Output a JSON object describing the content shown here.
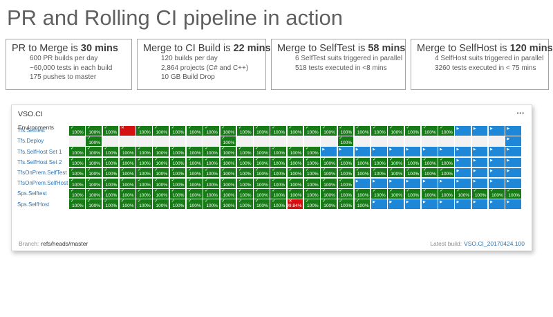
{
  "page": {
    "title": "PR and Rolling CI pipeline in action"
  },
  "stat_boxes": [
    {
      "title_prefix": "PR to Merge is ",
      "title_bold": "30 mins",
      "lines": [
        "600 PR builds per day",
        "~60,000 tests in each build",
        "175 pushes to master"
      ]
    },
    {
      "title_prefix": "Merge to CI Build is ",
      "title_bold": "22 mins",
      "lines": [
        "120 builds per day",
        "2,864 projects (C# and C++)",
        "10 GB Build Drop"
      ]
    },
    {
      "title_prefix": "Merge to SelfTest is ",
      "title_bold": "58 mins",
      "lines": [
        "6 SelfTest suits triggered in parallel",
        "518 tests executed in <8 mins"
      ]
    },
    {
      "title_prefix": "Merge to SelfHost is ",
      "title_bold": "120 mins",
      "lines": [
        "4 SelfHost suits triggered in parallel",
        "3260 tests executed in < 75 mins"
      ]
    }
  ],
  "panel": {
    "title": "VSO.CI",
    "menu_icon": "•••",
    "environments_label": "Environments",
    "pass_label": "100%",
    "icons": {
      "pass": "✓",
      "fail": "✕",
      "running": "▶"
    },
    "colors": {
      "pass": "#177b17",
      "fail": "#d51010",
      "running": "#1e87d8",
      "empty": "#f2f2f2",
      "label_link": "#2e75b5"
    },
    "rows": [
      {
        "label": "Tfs.Selftest",
        "cells": [
          "pass",
          "pass",
          "pass",
          "fail",
          "pass",
          "pass",
          "pass",
          "pass",
          "pass",
          "pass",
          "pass",
          "pass",
          "pass",
          "pass",
          "pass",
          "pass",
          "pass",
          "pass",
          "pass",
          "pass",
          "pass",
          "pass",
          "pass",
          "running",
          "running",
          "running",
          "running"
        ]
      },
      {
        "label": "Tfs.Deploy",
        "cells": [
          "empty",
          "pass",
          "empty",
          "empty",
          "empty",
          "empty",
          "empty",
          "empty",
          "empty",
          "pass",
          "empty",
          "empty",
          "empty",
          "empty",
          "empty",
          "empty",
          "pass",
          "empty",
          "empty",
          "empty",
          "empty",
          "empty",
          "empty",
          "empty",
          "empty",
          "empty",
          "running"
        ]
      },
      {
        "label": "Tfs.SelfHost Set 1",
        "cells": [
          "pass",
          "pass",
          "pass",
          "pass",
          "pass",
          "pass",
          "pass",
          "pass",
          "pass",
          "pass",
          "pass",
          "pass",
          "pass",
          "pass",
          "pass",
          "running",
          "running",
          "running",
          "running",
          "running",
          "running",
          "running",
          "running",
          "running",
          "running",
          "running",
          "running"
        ]
      },
      {
        "label": "Tfs.SelfHost Set 2",
        "cells": [
          "pass",
          "pass",
          "pass",
          "pass",
          "pass",
          "pass",
          "pass",
          "pass",
          "pass",
          "pass",
          "pass",
          "pass",
          "pass",
          "pass",
          "pass",
          "pass",
          "pass",
          "pass",
          "pass",
          "pass",
          "pass",
          "pass",
          "pass",
          "running",
          "running",
          "running",
          "running"
        ]
      },
      {
        "label": "TfsOnPrem.SelfTest",
        "cells": [
          "pass",
          "pass",
          "pass",
          "pass",
          "pass",
          "pass",
          "pass",
          "pass",
          "pass",
          "pass",
          "pass",
          "pass",
          "pass",
          "pass",
          "pass",
          "pass",
          "pass",
          "pass",
          "pass",
          "pass",
          "pass",
          "pass",
          "pass",
          "running",
          "running",
          "running",
          "running"
        ]
      },
      {
        "label": "TfsOnPrem.SelfHost",
        "cells": [
          "pass",
          "pass",
          "pass",
          "pass",
          "pass",
          "pass",
          "pass",
          "pass",
          "pass",
          "pass",
          "pass",
          "pass",
          "pass",
          "pass",
          "pass",
          "pass",
          "pass",
          "running",
          "running",
          "running",
          "running",
          "running",
          "running",
          "running",
          "running",
          "running",
          "running"
        ]
      },
      {
        "label": "Sps.Selftest",
        "cells": [
          "pass",
          "pass",
          "pass",
          "pass",
          "pass",
          "pass",
          "pass",
          "pass",
          "pass",
          "pass",
          "pass",
          "pass",
          "pass",
          "pass",
          "pass",
          "pass",
          "pass",
          "pass",
          "pass",
          "pass",
          "pass",
          "pass",
          "pass",
          "pass",
          "pass",
          "pass",
          "pass"
        ]
      },
      {
        "label": "Sps.SelfHost",
        "fail_value": "99.84%",
        "cells": [
          "pass",
          "pass",
          "pass",
          "pass",
          "pass",
          "pass",
          "pass",
          "pass",
          "pass",
          "pass",
          "pass",
          "pass",
          "pass",
          "fail",
          "pass",
          "pass",
          "pass",
          "pass",
          "running",
          "running",
          "running",
          "running",
          "running",
          "running",
          "running",
          "running",
          "running"
        ]
      }
    ],
    "footer": {
      "branch_label": "Branch:",
      "branch_value": "refs/heads/master",
      "latest_build_label": "Latest build:",
      "latest_build_value": "VSO.CI_20170424.100"
    }
  }
}
